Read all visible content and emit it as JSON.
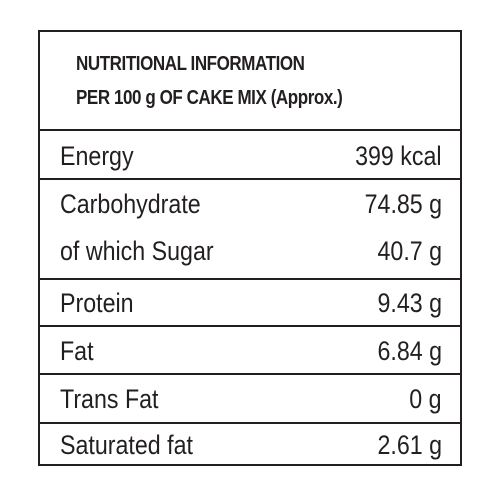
{
  "header": {
    "title": "NUTRITIONAL INFORMATION",
    "subtitle": "PER 100 g OF CAKE MIX (Approx.)"
  },
  "rows": [
    {
      "label": "Energy",
      "value": "399 kcal"
    },
    {
      "label": "Carbohydrate",
      "value": "74.85 g",
      "sub_label": "of which Sugar",
      "sub_value": "40.7 g"
    },
    {
      "label": "Protein",
      "value": "9.43 g"
    },
    {
      "label": "Fat",
      "value": "6.84 g"
    },
    {
      "label": "Trans Fat",
      "value": "0 g"
    },
    {
      "label": "Saturated fat",
      "value": "2.61 g"
    }
  ]
}
